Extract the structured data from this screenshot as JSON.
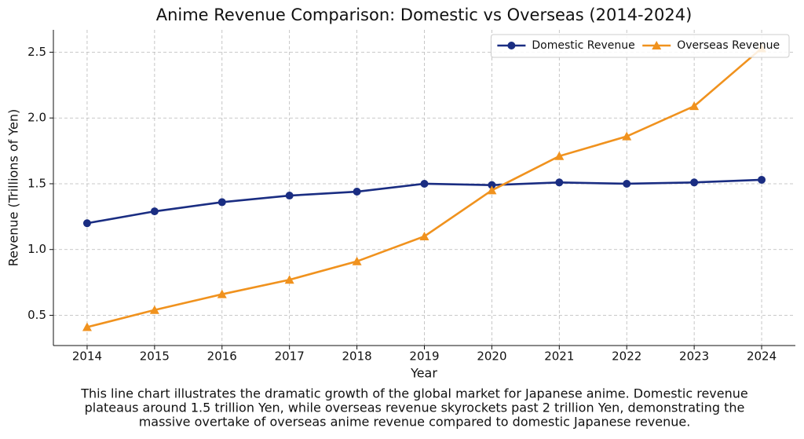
{
  "chart_data": {
    "type": "line",
    "title": "Anime Revenue Comparison: Domestic vs Overseas (2014-2024)",
    "x_label": "Year",
    "y_label": "Revenue (Trillions of Yen)",
    "x": [
      2014,
      2015,
      2016,
      2017,
      2018,
      2019,
      2020,
      2021,
      2022,
      2023,
      2024
    ],
    "series": [
      {
        "name": "Domestic Revenue",
        "color": "#1a2d82",
        "marker": "circle",
        "values": [
          1.2,
          1.29,
          1.36,
          1.41,
          1.44,
          1.5,
          1.49,
          1.51,
          1.5,
          1.51,
          1.53
        ]
      },
      {
        "name": "Overseas Revenue",
        "color": "#f0921e",
        "marker": "triangle",
        "values": [
          0.41,
          0.54,
          0.66,
          0.77,
          0.91,
          1.1,
          1.45,
          1.71,
          1.86,
          2.09,
          2.53
        ]
      }
    ],
    "xlim": [
      2013.5,
      2024.5
    ],
    "xticks": [
      2014,
      2015,
      2016,
      2017,
      2018,
      2019,
      2020,
      2021,
      2022,
      2023,
      2024
    ],
    "ylim": [
      0.27,
      2.67
    ],
    "yticks": [
      0.5,
      {
        "value": 1,
        "label": "1.0"
      },
      1.5,
      {
        "value": 2,
        "label": "2.0"
      },
      2.5
    ],
    "grid": true,
    "legend": "upper right",
    "caption": [
      "This line chart illustrates the dramatic growth of the global market for Japanese anime. Domestic revenue",
      "plateaus around 1.5 trillion Yen, while overseas revenue skyrockets past 2 trillion Yen, demonstrating the",
      "massive overtake of overseas anime revenue compared to domestic Japanese revenue."
    ]
  }
}
